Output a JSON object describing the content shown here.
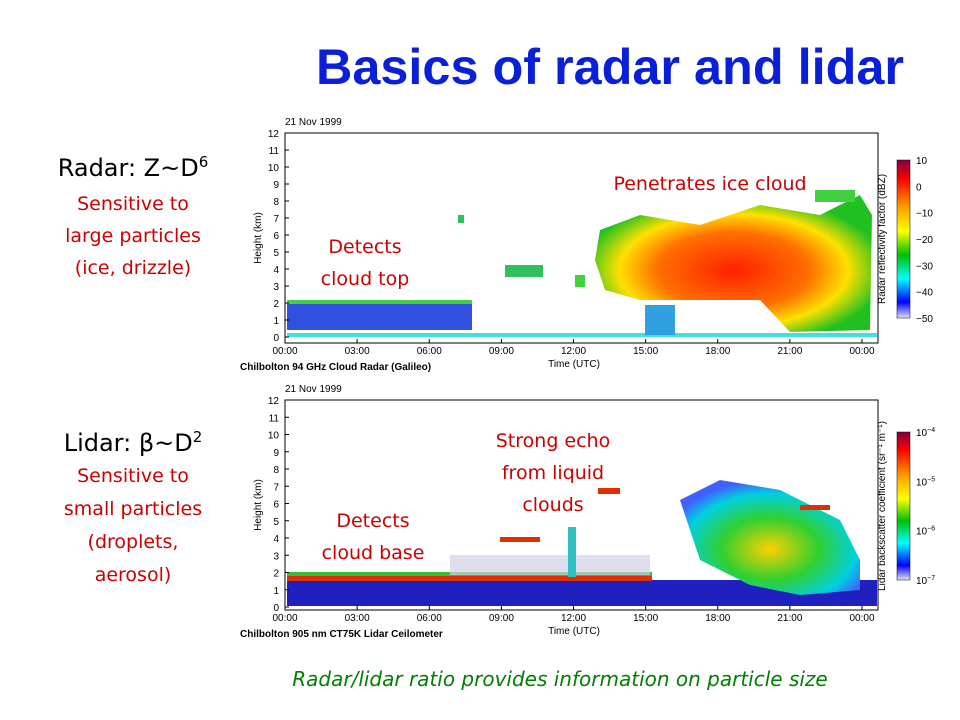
{
  "title": "Basics of radar and lidar",
  "radar": {
    "label": "Radar: Z~D",
    "exponent": "6",
    "description": [
      "Sensitive to",
      "large particles",
      "(ice, drizzle)"
    ],
    "panel": {
      "date": "21 Nov 1999",
      "y_label": "Height (km)",
      "y_ticks": [
        0,
        1,
        2,
        3,
        4,
        5,
        6,
        7,
        8,
        9,
        10,
        11,
        12
      ],
      "x_ticks": [
        "00:00",
        "03:00",
        "06:00",
        "09:00",
        "12:00",
        "15:00",
        "18:00",
        "21:00",
        "00:00"
      ],
      "x_label": "Time (UTC)",
      "caption": "Chilbolton 94 GHz Cloud Radar (Galileo)",
      "colorbar_label": "Radar reflectivity factor (dBZ)",
      "colorbar_ticks": [
        "10",
        "0",
        "−10",
        "−20",
        "−30",
        "−40",
        "−50"
      ]
    },
    "annotations": [
      {
        "lines": [
          "Penetrates ice cloud"
        ]
      },
      {
        "lines": [
          "Detects",
          "cloud top"
        ]
      }
    ]
  },
  "lidar": {
    "label": "Lidar: β~D",
    "exponent": "2",
    "description": [
      "Sensitive to",
      "small particles",
      "(droplets,",
      "aerosol)"
    ],
    "panel": {
      "date": "21 Nov 1999",
      "y_label": "Height (km)",
      "y_ticks": [
        0,
        1,
        2,
        3,
        4,
        5,
        6,
        7,
        8,
        9,
        10,
        11,
        12
      ],
      "x_ticks": [
        "00:00",
        "03:00",
        "06:00",
        "09:00",
        "12:00",
        "15:00",
        "18:00",
        "21:00",
        "00:00"
      ],
      "x_label": "Time (UTC)",
      "caption": "Chilbolton 905 nm CT75K Lidar Ceilometer",
      "colorbar_label": "Lidar backscatter coefficient (sr⁻¹ m⁻¹)",
      "colorbar_ticks": [
        {
          "base": "10",
          "exp": "−4"
        },
        {
          "base": "10",
          "exp": "−5"
        },
        {
          "base": "10",
          "exp": "−6"
        },
        {
          "base": "10",
          "exp": "−7"
        }
      ]
    },
    "annotations": [
      {
        "lines": [
          "Strong echo",
          "from liquid",
          "clouds"
        ]
      },
      {
        "lines": [
          "Detects",
          "cloud base"
        ]
      }
    ]
  },
  "footer": "Radar/lidar ratio provides information on particle size"
}
